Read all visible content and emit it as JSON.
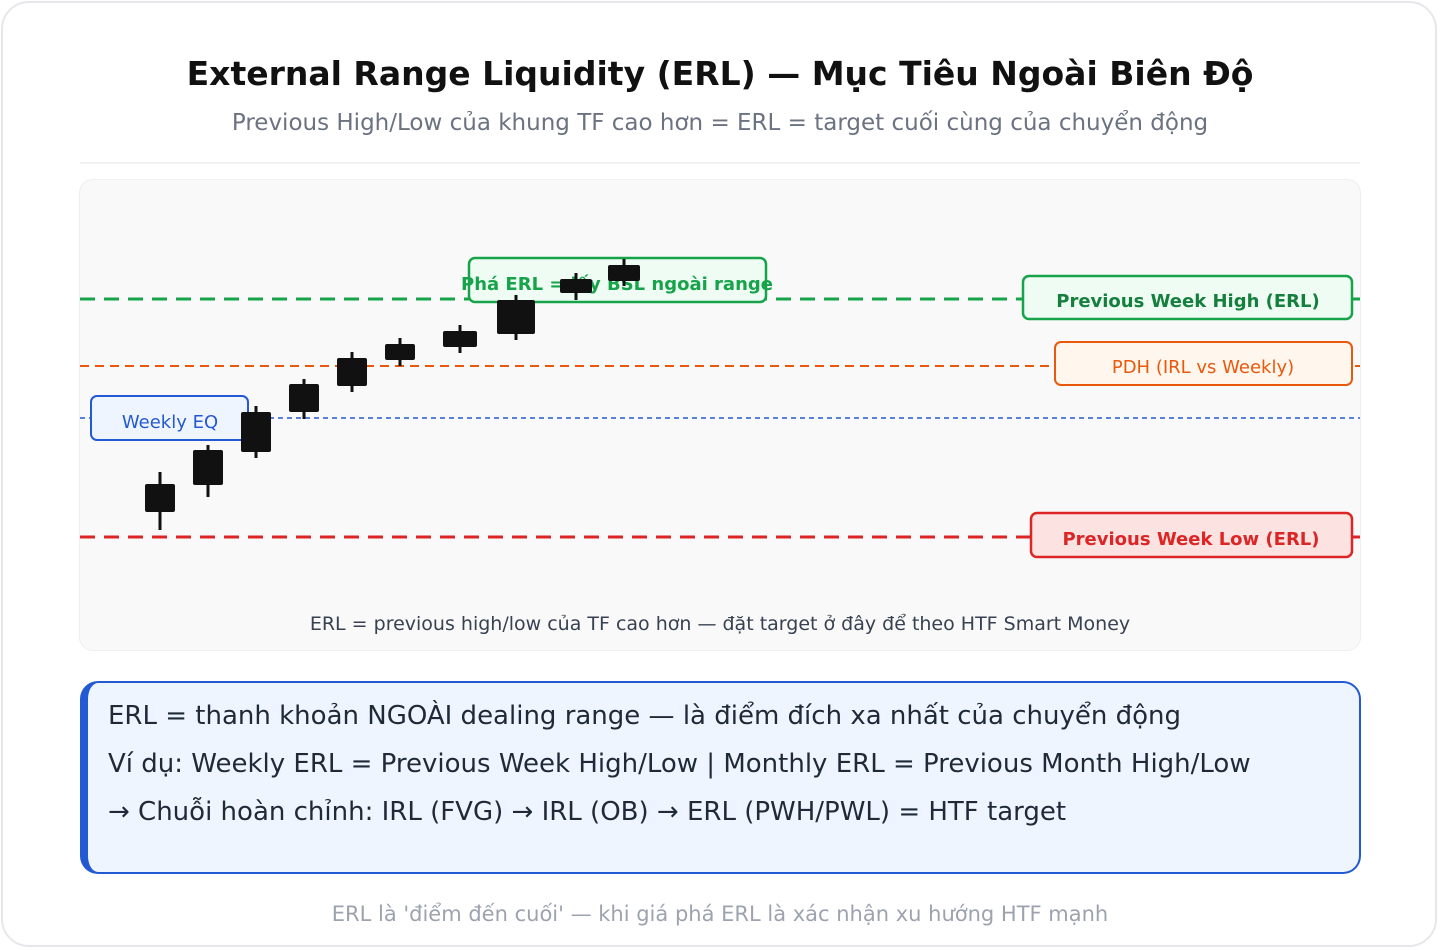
{
  "header": {
    "title": "External Range Liquidity (ERL) — Mục Tiêu Ngoài Biên Độ",
    "subtitle": "Previous High/Low của khung TF cao hơn = ERL = target cuối cùng của chuyển động"
  },
  "diagram": {
    "levels": {
      "pwh": {
        "label": "Previous Week High (ERL)",
        "color": "#16a34a",
        "fill": "#effcf3"
      },
      "pdh": {
        "label": "PDH (IRL vs Weekly)",
        "color": "#ea580c",
        "fill": "#fff7ed"
      },
      "eq": {
        "label": "Weekly EQ",
        "color": "#2459d4",
        "fill": "#eef5ff"
      },
      "pwl": {
        "label": "Previous Week Low (ERL)",
        "color": "#dc2626",
        "fill": "#fde2e2"
      }
    },
    "break_label": "Phá ERL = lấy BSL ngoài range",
    "caption": "ERL = previous high/low của TF cao hơn — đặt target ở đây để theo HTF Smart Money",
    "candle_color": "#111111"
  },
  "info": {
    "line1": "ERL = thanh khoản NGOÀI dealing range — là điểm đích xa nhất của chuyển động",
    "line2": "Ví dụ: Weekly ERL = Previous Week High/Low | Monthly ERL = Previous Month High/Low",
    "line3": "→ Chuỗi hoàn chỉnh: IRL (FVG) → IRL (OB) → ERL (PWH/PWL) = HTF target"
  },
  "footer": "ERL là 'điểm đến cuối' — khi giá phá ERL là xác nhận xu hướng HTF mạnh"
}
